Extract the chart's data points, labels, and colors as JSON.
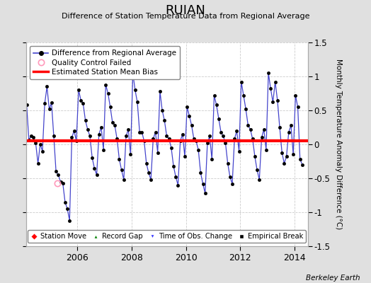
{
  "title": "RUIAN",
  "subtitle": "Difference of Station Temperature Data from Regional Average",
  "ylabel": "Monthly Temperature Anomaly Difference (°C)",
  "credit": "Berkeley Earth",
  "ylim": [
    -1.5,
    1.5
  ],
  "xlim": [
    2004.1,
    2014.5
  ],
  "mean_bias": 0.05,
  "line_color": "#4444cc",
  "line_width": 0.9,
  "marker_color": "#000000",
  "marker_size": 3,
  "bias_color": "#ff0000",
  "bias_linewidth": 3,
  "qc_fail_x": 2005.25,
  "qc_fail_y": -0.57,
  "background_color": "#e0e0e0",
  "plot_bg_color": "#ffffff",
  "grid_color": "#cccccc",
  "xticks": [
    2006,
    2008,
    2010,
    2012,
    2014
  ],
  "yticks": [
    -1.5,
    -1.0,
    -0.5,
    0.0,
    0.5,
    1.0,
    1.5
  ],
  "ytick_labels": [
    "-1.5",
    "-1",
    "-0.5",
    "0",
    "0.5",
    "1",
    "1.5"
  ],
  "time_series": [
    2004.042,
    0.6,
    2004.125,
    0.58,
    2004.208,
    0.06,
    2004.292,
    0.13,
    2004.375,
    0.1,
    2004.458,
    0.02,
    2004.542,
    -0.28,
    2004.625,
    0.0,
    2004.708,
    -0.1,
    2004.792,
    0.6,
    2004.875,
    0.85,
    2004.958,
    0.52,
    2005.042,
    0.61,
    2005.125,
    0.12,
    2005.208,
    -0.4,
    2005.292,
    -0.45,
    2005.375,
    -0.55,
    2005.458,
    -0.57,
    2005.542,
    -0.85,
    2005.625,
    -0.95,
    2005.708,
    -1.12,
    2005.792,
    0.1,
    2005.875,
    0.2,
    2005.958,
    0.05,
    2006.042,
    0.8,
    2006.125,
    0.65,
    2006.208,
    0.6,
    2006.292,
    0.35,
    2006.375,
    0.22,
    2006.458,
    0.12,
    2006.542,
    -0.2,
    2006.625,
    -0.35,
    2006.708,
    -0.45,
    2006.792,
    0.15,
    2006.875,
    0.25,
    2006.958,
    -0.08,
    2007.042,
    0.88,
    2007.125,
    0.75,
    2007.208,
    0.55,
    2007.292,
    0.32,
    2007.375,
    0.28,
    2007.458,
    0.08,
    2007.542,
    -0.22,
    2007.625,
    -0.38,
    2007.708,
    -0.52,
    2007.792,
    0.12,
    2007.875,
    0.22,
    2007.958,
    -0.15,
    2008.042,
    1.05,
    2008.125,
    0.8,
    2008.208,
    0.62,
    2008.292,
    0.18,
    2008.375,
    0.18,
    2008.458,
    0.05,
    2008.542,
    -0.28,
    2008.625,
    -0.42,
    2008.708,
    -0.52,
    2008.792,
    0.08,
    2008.875,
    0.18,
    2008.958,
    -0.12,
    2009.042,
    0.78,
    2009.125,
    0.5,
    2009.208,
    0.35,
    2009.292,
    0.12,
    2009.375,
    0.08,
    2009.458,
    -0.05,
    2009.542,
    -0.32,
    2009.625,
    -0.48,
    2009.708,
    -0.6,
    2009.792,
    0.05,
    2009.875,
    0.15,
    2009.958,
    -0.18,
    2010.042,
    0.55,
    2010.125,
    0.42,
    2010.208,
    0.28,
    2010.292,
    0.08,
    2010.375,
    0.05,
    2010.458,
    -0.08,
    2010.542,
    -0.42,
    2010.625,
    -0.58,
    2010.708,
    -0.72,
    2010.792,
    0.02,
    2010.875,
    0.12,
    2010.958,
    -0.22,
    2011.042,
    0.72,
    2011.125,
    0.58,
    2011.208,
    0.38,
    2011.292,
    0.18,
    2011.375,
    0.12,
    2011.458,
    0.02,
    2011.542,
    -0.28,
    2011.625,
    -0.48,
    2011.708,
    -0.58,
    2011.792,
    0.08,
    2011.875,
    0.2,
    2011.958,
    -0.1,
    2012.042,
    0.92,
    2012.125,
    0.72,
    2012.208,
    0.52,
    2012.292,
    0.28,
    2012.375,
    0.22,
    2012.458,
    0.08,
    2012.542,
    -0.18,
    2012.625,
    -0.38,
    2012.708,
    -0.52,
    2012.792,
    0.1,
    2012.875,
    0.22,
    2012.958,
    -0.08,
    2013.042,
    1.05,
    2013.125,
    0.82,
    2013.208,
    0.62,
    2013.292,
    0.92,
    2013.375,
    0.65,
    2013.458,
    0.25,
    2013.542,
    -0.12,
    2013.625,
    -0.28,
    2013.708,
    -0.18,
    2013.792,
    0.18,
    2013.875,
    0.28,
    2013.958,
    -0.15,
    2014.042,
    0.72,
    2014.125,
    0.55,
    2014.208,
    -0.22,
    2014.292,
    -0.3
  ]
}
